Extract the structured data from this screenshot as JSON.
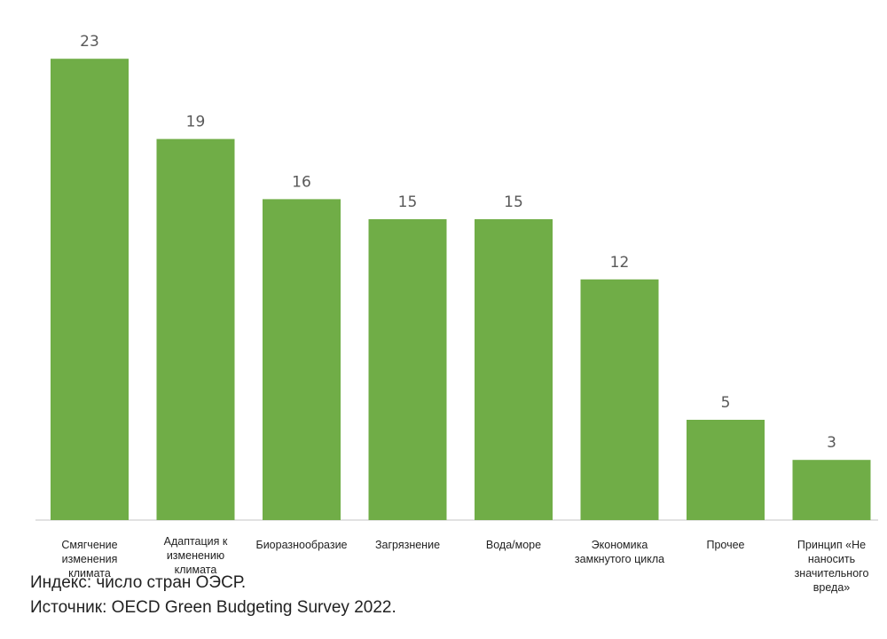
{
  "title": "",
  "chart_data": {
    "type": "bar",
    "title": "",
    "xlabel": "",
    "ylabel": "",
    "ylim": [
      0,
      25
    ],
    "grid": false,
    "legend": "none",
    "categories": [
      "Смягчение изменения климата",
      "Адаптация к изменению климата",
      "Биоразнообразие",
      "Загрязнение",
      "Вода/море",
      "Экономика замкнутого цикла",
      "Прочее",
      "Принцип «Не наносить значительного вреда»"
    ],
    "values": [
      23,
      19,
      16,
      15,
      15,
      12,
      5,
      3
    ],
    "bar_color": "#70ad47",
    "axis_color": "#d9d9d9"
  },
  "footnotes": {
    "index": "Индекс: число стран ОЭСР.",
    "source": "Источник: OECD Green Budgeting Survey 2022."
  }
}
